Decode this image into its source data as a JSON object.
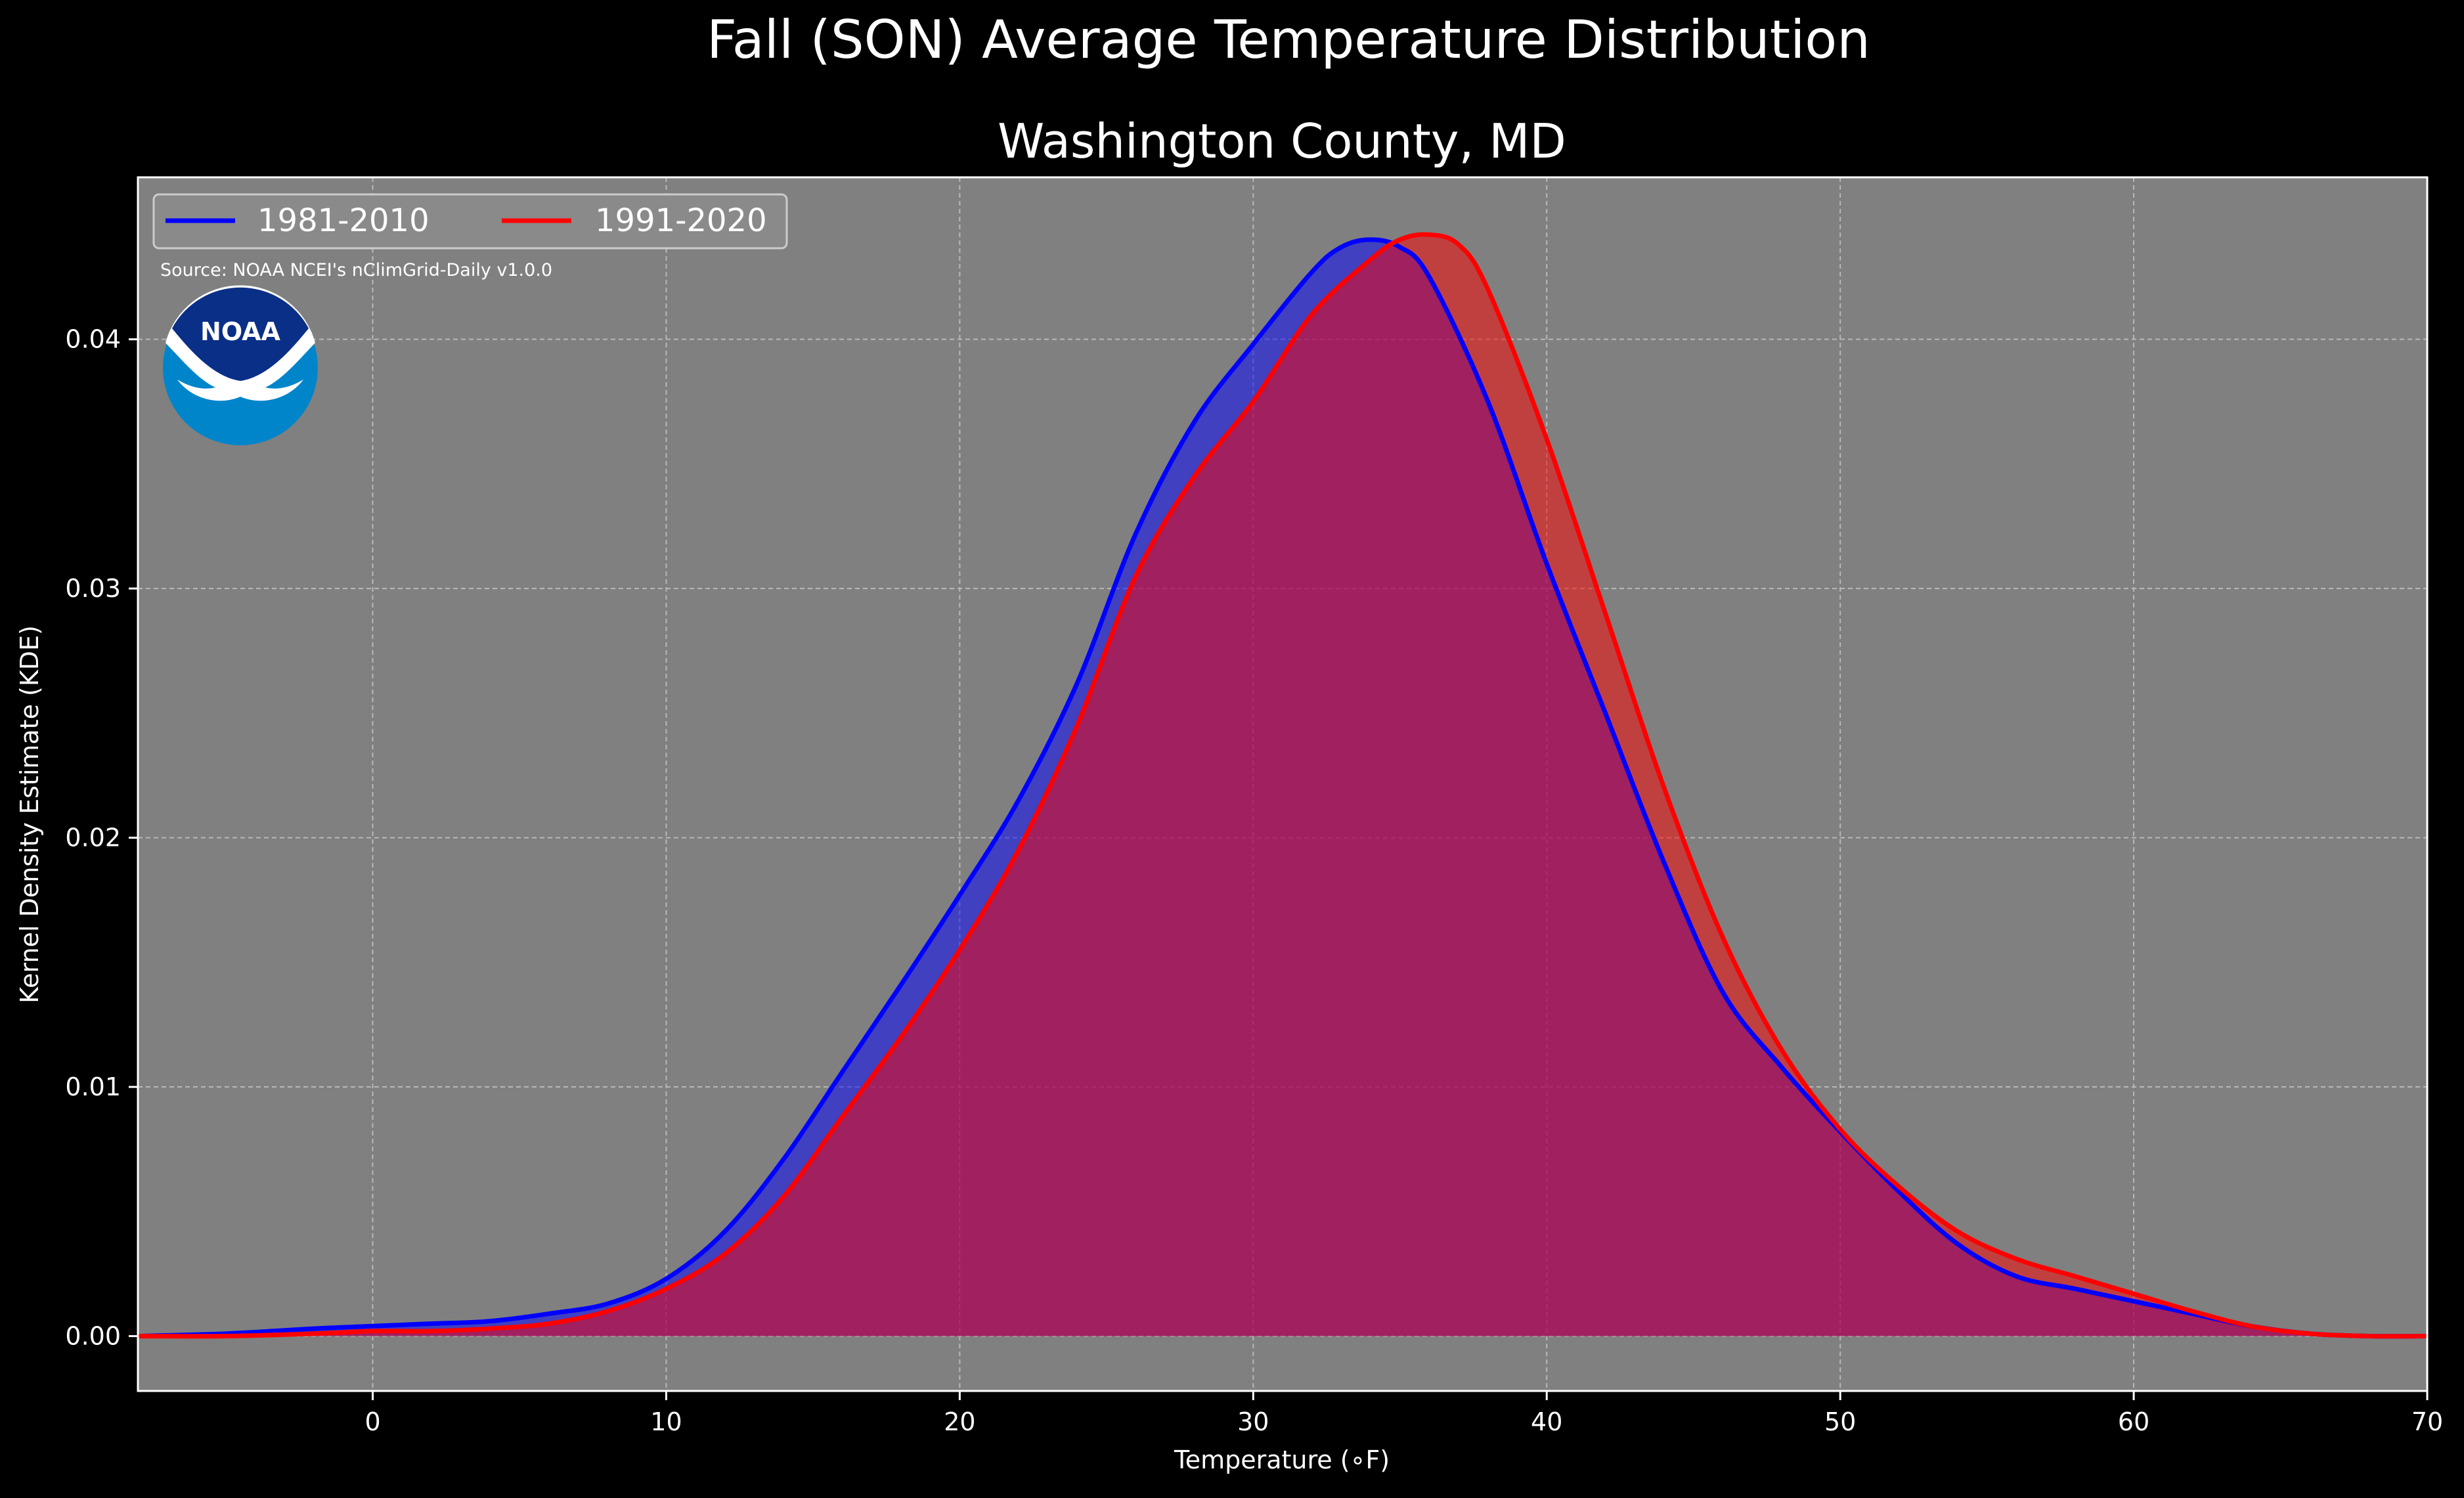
{
  "colors": {
    "figure_background": "#000000",
    "plot_background": "#808080",
    "grid": "#b8b8b8",
    "text": "#ffffff",
    "series_1981_2010": "#0000ff",
    "series_1991_2020": "#ff0000",
    "noaa_dark_blue": "#0a2f87",
    "noaa_light_blue": "#0085ca"
  },
  "logo": {
    "icon": "noaa-logo-icon",
    "text": "NOAA"
  },
  "chart_data": {
    "type": "area",
    "title": "Fall (SON) Average Temperature Distribution",
    "subtitle": "Washington County, MD",
    "xlabel": "Temperature (∘F)",
    "ylabel": "Kernel Density Estimate (KDE)",
    "source_note": "Source: NOAA NCEI's nClimGrid-Daily v1.0.0",
    "xlim": [
      -8,
      70
    ],
    "ylim": [
      -0.0022,
      0.0465
    ],
    "x_ticks": [
      0,
      10,
      20,
      30,
      40,
      50,
      60,
      70
    ],
    "x_tick_labels": [
      "0",
      "10",
      "20",
      "30",
      "40",
      "50",
      "60",
      "70"
    ],
    "y_ticks": [
      0.0,
      0.01,
      0.02,
      0.03,
      0.04
    ],
    "y_tick_labels": [
      "0.00",
      "0.01",
      "0.02",
      "0.03",
      "0.04"
    ],
    "grid": true,
    "legend_position": "top-left",
    "series": [
      {
        "name": "1981-2010",
        "color": "#0000ff",
        "x": [
          -8,
          -5,
          -2,
          0,
          2,
          4,
          6,
          8,
          10,
          12,
          14,
          16,
          18,
          20,
          22,
          24,
          26,
          28,
          30,
          32,
          33,
          34,
          35,
          36,
          38,
          40,
          42,
          44,
          46,
          48,
          50,
          52,
          54,
          56,
          58,
          60,
          62,
          64,
          66,
          68,
          70
        ],
        "y": [
          0.0,
          0.0001,
          0.0003,
          0.0004,
          0.0005,
          0.0006,
          0.0009,
          0.0013,
          0.0023,
          0.0042,
          0.0071,
          0.0106,
          0.0141,
          0.0177,
          0.0215,
          0.0262,
          0.0322,
          0.0367,
          0.0398,
          0.0427,
          0.0437,
          0.044,
          0.0437,
          0.0425,
          0.0375,
          0.031,
          0.025,
          0.019,
          0.0138,
          0.0108,
          0.0082,
          0.0058,
          0.0037,
          0.0024,
          0.0019,
          0.0014,
          0.0009,
          0.0004,
          0.0001,
          0.0,
          0.0
        ]
      },
      {
        "name": "1991-2020",
        "color": "#ff0000",
        "x": [
          -8,
          -5,
          -2,
          0,
          2,
          4,
          6,
          8,
          10,
          12,
          14,
          16,
          18,
          20,
          22,
          24,
          26,
          28,
          30,
          32,
          34,
          35,
          36,
          37,
          38,
          40,
          42,
          44,
          46,
          48,
          50,
          52,
          54,
          56,
          58,
          60,
          62,
          64,
          66,
          68,
          70
        ],
        "y": [
          0.0,
          0.0,
          0.0001,
          0.0002,
          0.0002,
          0.0003,
          0.0005,
          0.001,
          0.0019,
          0.0033,
          0.0056,
          0.0088,
          0.012,
          0.0155,
          0.0195,
          0.0245,
          0.0305,
          0.0345,
          0.0375,
          0.041,
          0.0432,
          0.044,
          0.0442,
          0.0438,
          0.042,
          0.036,
          0.029,
          0.022,
          0.016,
          0.0115,
          0.0083,
          0.006,
          0.0042,
          0.0031,
          0.0024,
          0.0017,
          0.001,
          0.0004,
          0.0001,
          0.0,
          0.0
        ]
      }
    ]
  }
}
